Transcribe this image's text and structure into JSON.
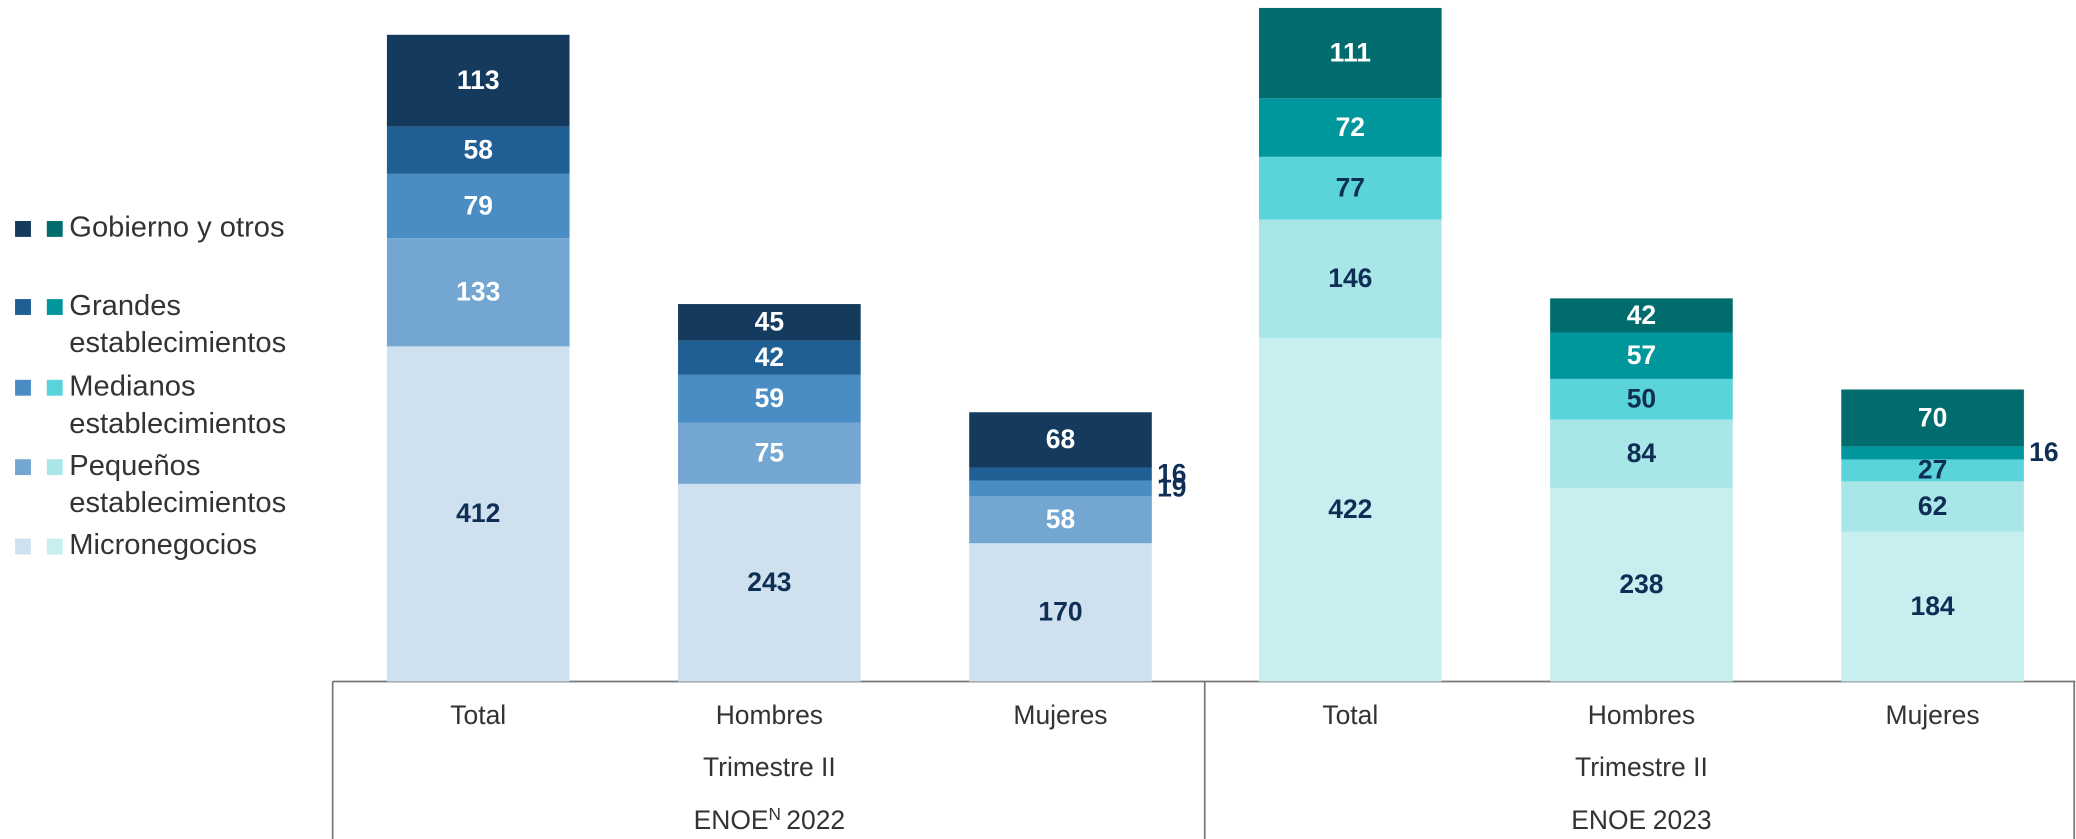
{
  "chart_data": {
    "type": "stacked_bar",
    "categories": [
      "Total",
      "Hombres",
      "Mujeres",
      "Total",
      "Hombres",
      "Mujeres"
    ],
    "groups": [
      {
        "quarter": "Trimestre II",
        "survey": "ENOE",
        "note": "N",
        "year": "2022"
      },
      {
        "quarter": "Trimestre II",
        "survey": "ENOE",
        "year": "2023"
      }
    ],
    "series": [
      {
        "name": "Micronegocios",
        "colors": [
          "#cfe0ee",
          "#c8eff0"
        ],
        "label_colors": [
          "#0f2e55",
          "#0f2e55"
        ],
        "values": [
          412,
          243,
          170,
          422,
          238,
          184
        ]
      },
      {
        "name": "Pequeños establecimientos",
        "colors": [
          "#74a6d2",
          "#a8e6e8"
        ],
        "label_colors": [
          "#ffffff",
          "#0f2e55"
        ],
        "values": [
          133,
          75,
          58,
          146,
          84,
          62
        ]
      },
      {
        "name": "Medianos establecimientos",
        "colors": [
          "#4a8cc4",
          "#5ad3da"
        ],
        "label_colors": [
          "#ffffff",
          "#0f2e55"
        ],
        "values": [
          79,
          59,
          19,
          77,
          50,
          27
        ]
      },
      {
        "name": "Grandes establecimientos",
        "colors": [
          "#1f5f93",
          "#00979c"
        ],
        "label_colors": [
          "#ffffff",
          "#ffffff"
        ],
        "values": [
          58,
          42,
          16,
          72,
          57,
          16
        ]
      },
      {
        "name": "Gobierno y otros",
        "colors": [
          "#143a5e",
          "#006c6e"
        ],
        "label_colors": [
          "#ffffff",
          "#ffffff"
        ],
        "values": [
          113,
          45,
          68,
          111,
          42,
          70
        ]
      }
    ]
  }
}
